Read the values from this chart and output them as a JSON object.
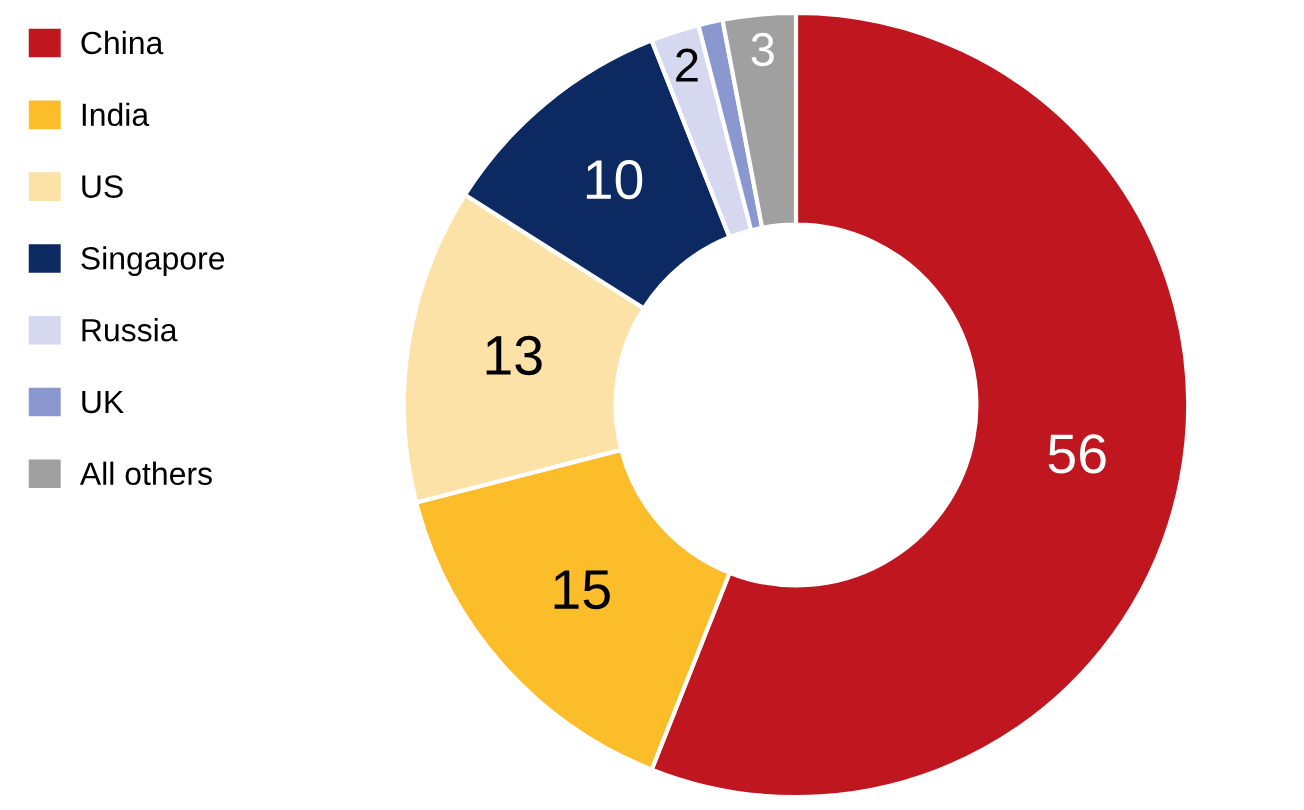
{
  "chart_data": {
    "type": "donut",
    "categories": [
      "China",
      "India",
      "US",
      "Singapore",
      "Russia",
      "UK",
      "All others"
    ],
    "values": [
      56,
      15,
      13,
      10,
      2,
      1,
      3
    ],
    "value_labels": [
      "56",
      "15",
      "13",
      "10",
      "2",
      null,
      "3"
    ],
    "colors": [
      "#c0161f",
      "#fbbd2a",
      "#fde2a7",
      "#0c2a61",
      "#d5d8ee",
      "#8b97cf",
      "#a0a0a0"
    ],
    "legend": "top left"
  }
}
